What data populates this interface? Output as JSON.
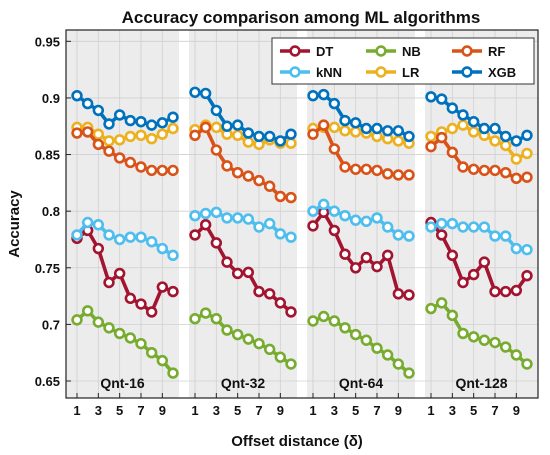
{
  "chart_data": {
    "type": "line",
    "title": "Accuracy comparison among ML algorithms",
    "xlabel": "Offset distance (δ)",
    "ylabel": "Accuracy",
    "ylim": [
      0.635,
      0.96
    ],
    "yticks": [
      0.65,
      0.7,
      0.75,
      0.8,
      0.85,
      0.9,
      0.95
    ],
    "ytick_labels": [
      "0.65",
      "0.7",
      "0.75",
      "0.8",
      "0.85",
      "0.9",
      "0.95"
    ],
    "x": [
      1,
      2,
      3,
      4,
      5,
      6,
      7,
      8,
      9,
      10
    ],
    "xtick_labels": [
      "1",
      "3",
      "5",
      "7",
      "9"
    ],
    "grid": true,
    "legend_position": "top-right",
    "groups": [
      {
        "label": "Qnt-16",
        "shaded": true
      },
      {
        "label": "Qnt-32",
        "shaded": true
      },
      {
        "label": "Qnt-64",
        "shaded": true
      },
      {
        "label": "Qnt-128",
        "shaded": true
      }
    ],
    "series": [
      {
        "name": "DT",
        "color": "#A2142F",
        "values": [
          [
            0.776,
            0.783,
            0.767,
            0.737,
            0.745,
            0.723,
            0.718,
            0.711,
            0.733,
            0.729
          ],
          [
            0.779,
            0.788,
            0.772,
            0.755,
            0.745,
            0.746,
            0.729,
            0.727,
            0.719,
            0.711
          ],
          [
            0.787,
            0.799,
            0.783,
            0.762,
            0.75,
            0.759,
            0.751,
            0.761,
            0.727,
            0.726
          ],
          [
            0.79,
            0.779,
            0.761,
            0.737,
            0.744,
            0.755,
            0.729,
            0.729,
            0.73,
            0.743
          ]
        ]
      },
      {
        "name": "kNN",
        "color": "#4DBEEE",
        "values": [
          [
            0.779,
            0.79,
            0.788,
            0.779,
            0.775,
            0.777,
            0.777,
            0.773,
            0.767,
            0.761
          ],
          [
            0.796,
            0.798,
            0.799,
            0.794,
            0.794,
            0.793,
            0.786,
            0.789,
            0.78,
            0.777
          ],
          [
            0.8,
            0.806,
            0.8,
            0.796,
            0.792,
            0.791,
            0.794,
            0.786,
            0.779,
            0.778
          ],
          [
            0.786,
            0.789,
            0.789,
            0.786,
            0.786,
            0.786,
            0.778,
            0.778,
            0.767,
            0.766
          ]
        ]
      },
      {
        "name": "NB",
        "color": "#77AC30",
        "values": [
          [
            0.704,
            0.712,
            0.702,
            0.697,
            0.692,
            0.688,
            0.683,
            0.675,
            0.668,
            0.657
          ],
          [
            0.705,
            0.71,
            0.705,
            0.695,
            0.691,
            0.687,
            0.683,
            0.678,
            0.671,
            0.665
          ],
          [
            0.703,
            0.707,
            0.703,
            0.697,
            0.691,
            0.686,
            0.679,
            0.673,
            0.665,
            0.657
          ],
          [
            0.714,
            0.719,
            0.708,
            0.692,
            0.689,
            0.686,
            0.684,
            0.68,
            0.673,
            0.665
          ]
        ]
      },
      {
        "name": "LR",
        "color": "#EDB120",
        "values": [
          [
            0.874,
            0.874,
            0.868,
            0.862,
            0.863,
            0.866,
            0.867,
            0.864,
            0.868,
            0.873
          ],
          [
            0.872,
            0.876,
            0.874,
            0.868,
            0.867,
            0.861,
            0.859,
            0.863,
            0.86,
            0.86
          ],
          [
            0.873,
            0.874,
            0.874,
            0.871,
            0.87,
            0.869,
            0.866,
            0.864,
            0.862,
            0.86
          ],
          [
            0.866,
            0.87,
            0.873,
            0.876,
            0.87,
            0.867,
            0.862,
            0.858,
            0.846,
            0.851
          ]
        ]
      },
      {
        "name": "RF",
        "color": "#D95319",
        "values": [
          [
            0.869,
            0.87,
            0.859,
            0.853,
            0.847,
            0.843,
            0.839,
            0.836,
            0.836,
            0.836
          ],
          [
            0.867,
            0.874,
            0.854,
            0.84,
            0.834,
            0.831,
            0.827,
            0.822,
            0.813,
            0.812
          ],
          [
            0.868,
            0.876,
            0.855,
            0.839,
            0.837,
            0.837,
            0.836,
            0.833,
            0.832,
            0.832
          ],
          [
            0.857,
            0.865,
            0.852,
            0.839,
            0.837,
            0.836,
            0.836,
            0.834,
            0.829,
            0.83
          ]
        ]
      },
      {
        "name": "XGB",
        "color": "#0072BD",
        "values": [
          [
            0.902,
            0.895,
            0.889,
            0.877,
            0.885,
            0.88,
            0.879,
            0.876,
            0.878,
            0.883
          ],
          [
            0.905,
            0.904,
            0.889,
            0.875,
            0.876,
            0.869,
            0.866,
            0.866,
            0.862,
            0.868
          ],
          [
            0.902,
            0.903,
            0.895,
            0.88,
            0.878,
            0.873,
            0.873,
            0.871,
            0.871,
            0.866
          ],
          [
            0.901,
            0.899,
            0.891,
            0.885,
            0.879,
            0.873,
            0.873,
            0.866,
            0.862,
            0.867
          ]
        ]
      }
    ],
    "legend": [
      [
        "DT",
        "NB",
        "RF"
      ],
      [
        "kNN",
        "LR",
        "XGB"
      ]
    ]
  }
}
